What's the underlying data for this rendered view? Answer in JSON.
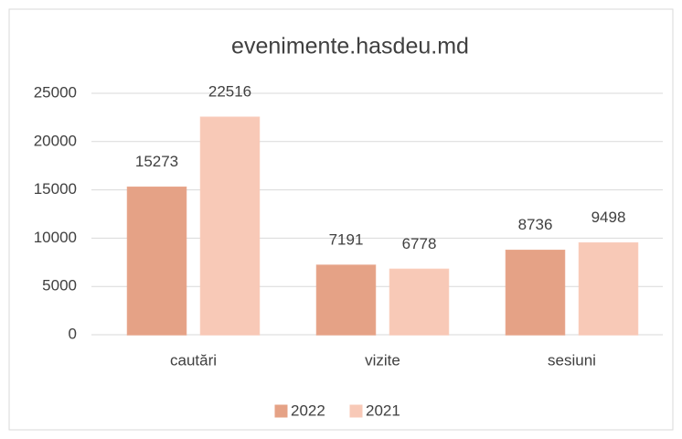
{
  "chart_data": {
    "type": "bar",
    "title": "evenimente.hasdeu.md",
    "categories": [
      "cautări",
      "vizite",
      "sesiuni"
    ],
    "series": [
      {
        "name": "2022",
        "color": "#e5a286",
        "values": [
          15273,
          7191,
          8736
        ]
      },
      {
        "name": "2021",
        "color": "#f8c9b7",
        "values": [
          22516,
          6778,
          9498
        ]
      }
    ],
    "ylim": [
      0,
      25000
    ],
    "yticks": [
      0,
      5000,
      10000,
      15000,
      20000,
      25000
    ],
    "grid": true,
    "legend": "bottom"
  }
}
